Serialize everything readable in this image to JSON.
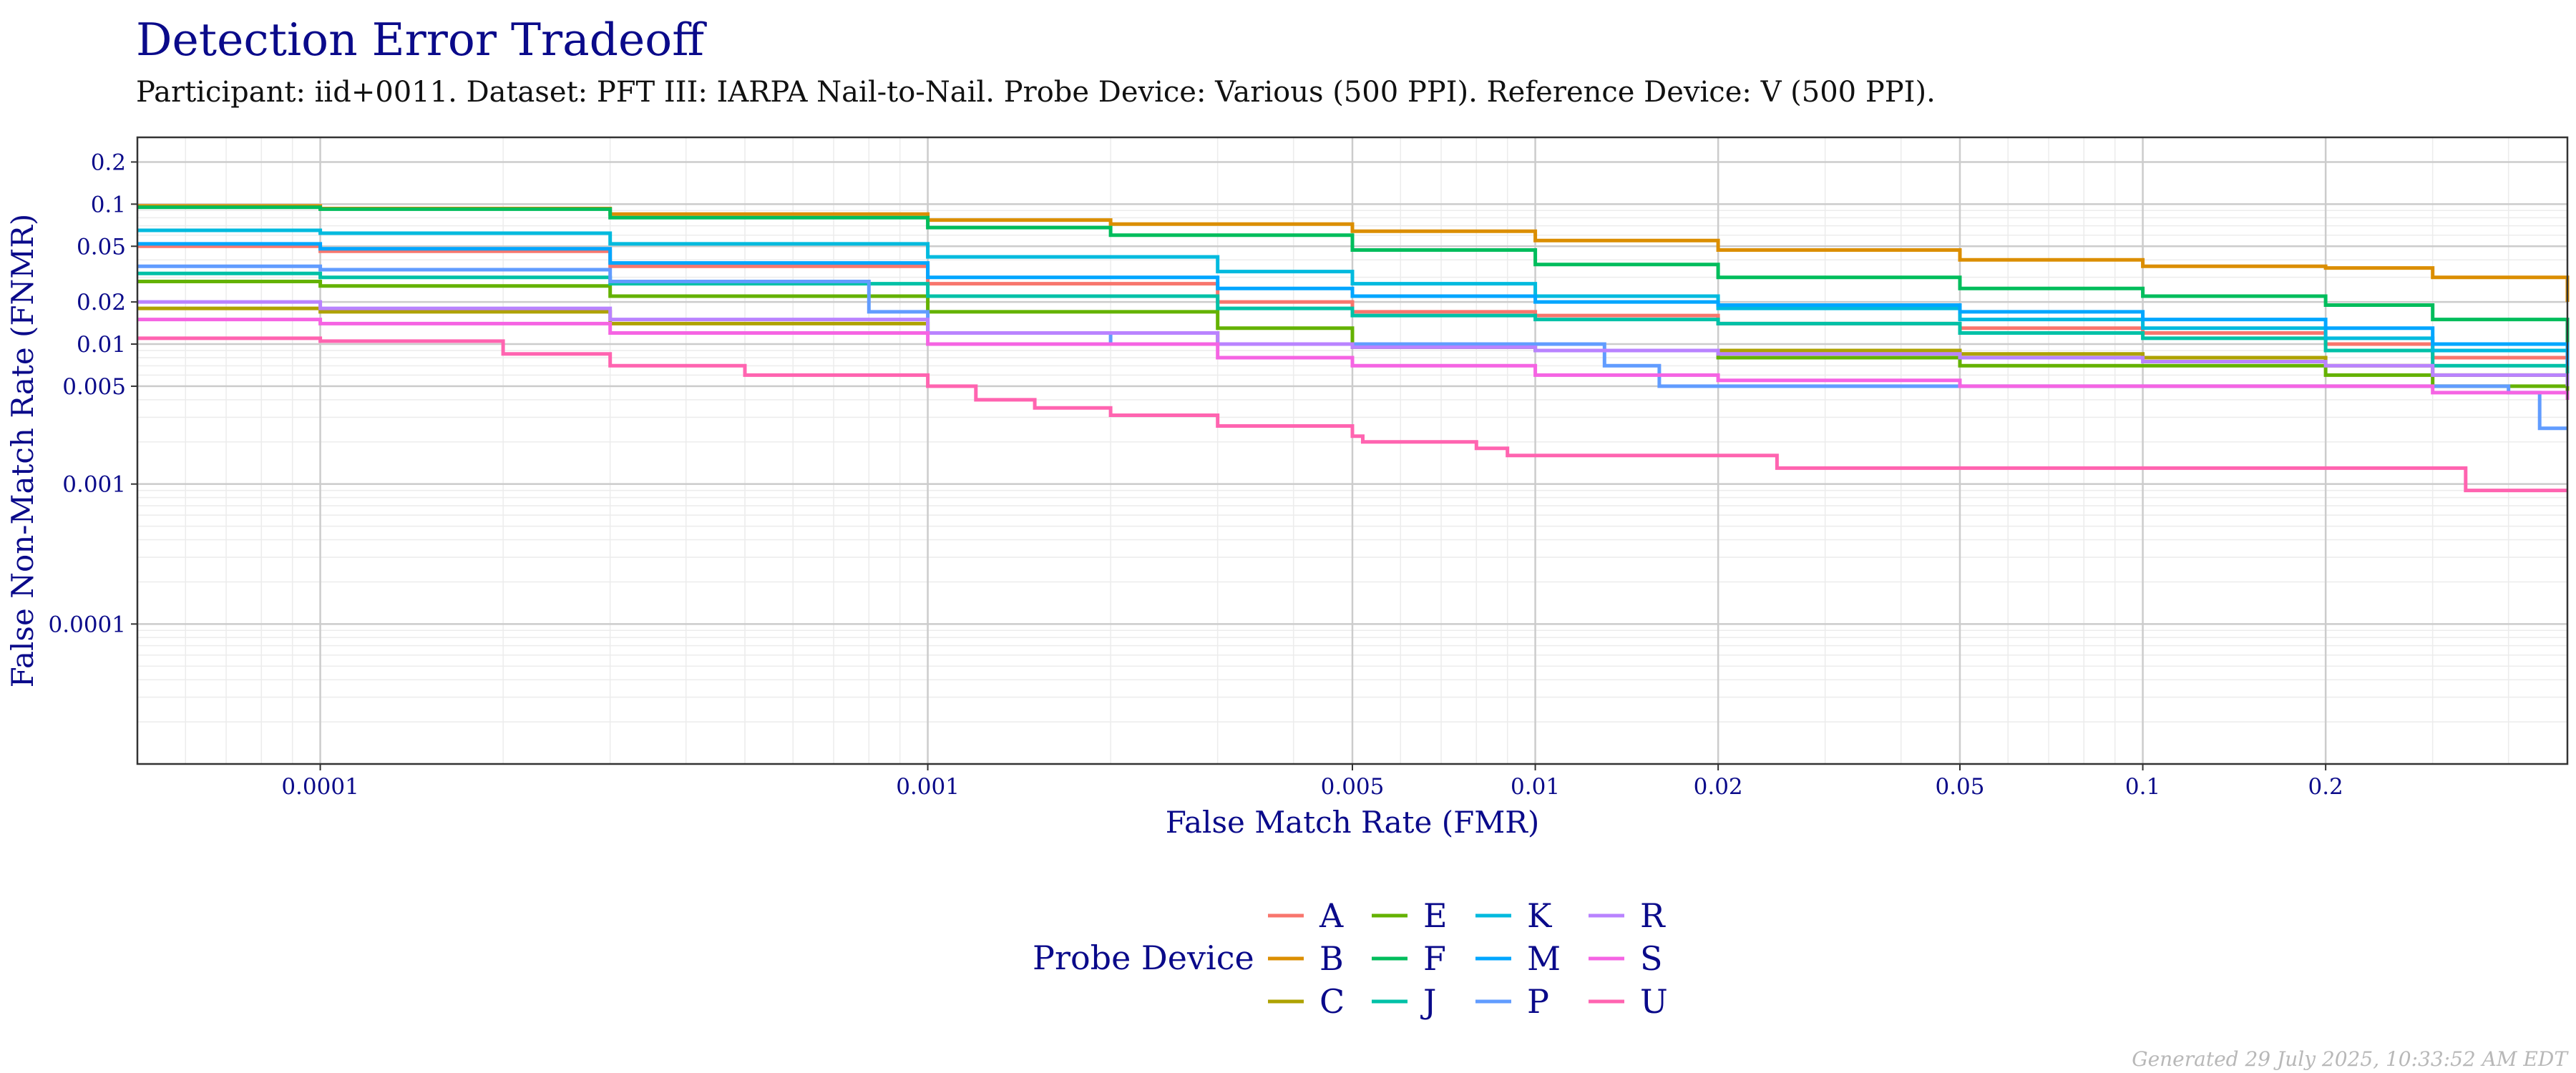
{
  "footer": "Generated 29 July 2025, 10:33:52 AM EDT",
  "chart_data": {
    "type": "line",
    "title": "Detection Error Tradeoff",
    "subtitle": "Participant: iid+0011. Dataset: PFT III: IARPA Nail-to-Nail. Probe Device: Various (500 PPI). Reference Device: V (500 PPI).",
    "xlabel": "False Match Rate (FMR)",
    "ylabel": "False Non-Match Rate (FNMR)",
    "x_scale": "log",
    "y_scale": "log",
    "xlim": [
      5e-05,
      0.5
    ],
    "ylim": [
      1e-05,
      0.3
    ],
    "x_ticks": [
      {
        "value": 0.0001,
        "label": "0.0001"
      },
      {
        "value": 0.001,
        "label": "0.001"
      },
      {
        "value": 0.005,
        "label": "0.005"
      },
      {
        "value": 0.01,
        "label": "0.01"
      },
      {
        "value": 0.02,
        "label": "0.02"
      },
      {
        "value": 0.05,
        "label": "0.05"
      },
      {
        "value": 0.1,
        "label": "0.1"
      },
      {
        "value": 0.2,
        "label": "0.2"
      }
    ],
    "y_ticks": [
      {
        "value": 0.0001,
        "label": "0.0001"
      },
      {
        "value": 0.001,
        "label": "0.001"
      },
      {
        "value": 0.005,
        "label": "0.005"
      },
      {
        "value": 0.01,
        "label": "0.01"
      },
      {
        "value": 0.02,
        "label": "0.02"
      },
      {
        "value": 0.05,
        "label": "0.05"
      },
      {
        "value": 0.1,
        "label": "0.1"
      },
      {
        "value": 0.2,
        "label": "0.2"
      }
    ],
    "grid": true,
    "legend": {
      "title": "Probe Device",
      "position": "bottom"
    },
    "series": [
      {
        "name": "A",
        "color": "#F8766D",
        "points": [
          [
            5e-05,
            0.05
          ],
          [
            0.0001,
            0.046
          ],
          [
            0.0003,
            0.036
          ],
          [
            0.001,
            0.027
          ],
          [
            0.003,
            0.02
          ],
          [
            0.005,
            0.017
          ],
          [
            0.01,
            0.016
          ],
          [
            0.02,
            0.014
          ],
          [
            0.05,
            0.013
          ],
          [
            0.1,
            0.012
          ],
          [
            0.2,
            0.01
          ],
          [
            0.3,
            0.008
          ],
          [
            0.5,
            0.006
          ]
        ]
      },
      {
        "name": "B",
        "color": "#DB8E00",
        "points": [
          [
            5e-05,
            0.097
          ],
          [
            0.0001,
            0.093
          ],
          [
            0.0003,
            0.085
          ],
          [
            0.001,
            0.077
          ],
          [
            0.002,
            0.072
          ],
          [
            0.005,
            0.064
          ],
          [
            0.01,
            0.055
          ],
          [
            0.02,
            0.047
          ],
          [
            0.05,
            0.04
          ],
          [
            0.1,
            0.036
          ],
          [
            0.2,
            0.035
          ],
          [
            0.3,
            0.03
          ],
          [
            0.5,
            0.02
          ]
        ]
      },
      {
        "name": "C",
        "color": "#AEA200",
        "points": [
          [
            5e-05,
            0.018
          ],
          [
            0.0001,
            0.017
          ],
          [
            0.0003,
            0.014
          ],
          [
            0.001,
            0.012
          ],
          [
            0.003,
            0.01
          ],
          [
            0.005,
            0.0095
          ],
          [
            0.01,
            0.009
          ],
          [
            0.02,
            0.009
          ],
          [
            0.05,
            0.0085
          ],
          [
            0.1,
            0.008
          ],
          [
            0.2,
            0.007
          ],
          [
            0.3,
            0.006
          ],
          [
            0.5,
            0.005
          ]
        ]
      },
      {
        "name": "E",
        "color": "#64B200",
        "points": [
          [
            5e-05,
            0.028
          ],
          [
            0.0001,
            0.026
          ],
          [
            0.0003,
            0.022
          ],
          [
            0.001,
            0.017
          ],
          [
            0.003,
            0.013
          ],
          [
            0.005,
            0.01
          ],
          [
            0.01,
            0.009
          ],
          [
            0.02,
            0.008
          ],
          [
            0.05,
            0.007
          ],
          [
            0.1,
            0.007
          ],
          [
            0.2,
            0.006
          ],
          [
            0.3,
            0.005
          ],
          [
            0.5,
            0.004
          ]
        ]
      },
      {
        "name": "F",
        "color": "#00BD5C",
        "points": [
          [
            5e-05,
            0.095
          ],
          [
            0.0001,
            0.092
          ],
          [
            0.0003,
            0.08
          ],
          [
            0.001,
            0.068
          ],
          [
            0.002,
            0.06
          ],
          [
            0.005,
            0.047
          ],
          [
            0.01,
            0.037
          ],
          [
            0.02,
            0.03
          ],
          [
            0.05,
            0.025
          ],
          [
            0.1,
            0.022
          ],
          [
            0.2,
            0.019
          ],
          [
            0.3,
            0.015
          ],
          [
            0.5,
            0.009
          ]
        ]
      },
      {
        "name": "J",
        "color": "#00C1A7",
        "points": [
          [
            5e-05,
            0.032
          ],
          [
            0.0001,
            0.03
          ],
          [
            0.0003,
            0.027
          ],
          [
            0.001,
            0.022
          ],
          [
            0.003,
            0.018
          ],
          [
            0.005,
            0.016
          ],
          [
            0.01,
            0.015
          ],
          [
            0.02,
            0.014
          ],
          [
            0.05,
            0.012
          ],
          [
            0.1,
            0.011
          ],
          [
            0.2,
            0.009
          ],
          [
            0.3,
            0.007
          ],
          [
            0.5,
            0.006
          ]
        ]
      },
      {
        "name": "K",
        "color": "#00BADE",
        "points": [
          [
            5e-05,
            0.065
          ],
          [
            0.0001,
            0.062
          ],
          [
            0.0003,
            0.052
          ],
          [
            0.001,
            0.042
          ],
          [
            0.003,
            0.033
          ],
          [
            0.005,
            0.027
          ],
          [
            0.01,
            0.022
          ],
          [
            0.02,
            0.018
          ],
          [
            0.05,
            0.015
          ],
          [
            0.1,
            0.013
          ],
          [
            0.2,
            0.011
          ],
          [
            0.3,
            0.009
          ],
          [
            0.5,
            0.007
          ]
        ]
      },
      {
        "name": "M",
        "color": "#00A6FF",
        "points": [
          [
            5e-05,
            0.052
          ],
          [
            0.0001,
            0.048
          ],
          [
            0.0003,
            0.038
          ],
          [
            0.001,
            0.03
          ],
          [
            0.003,
            0.025
          ],
          [
            0.005,
            0.022
          ],
          [
            0.01,
            0.02
          ],
          [
            0.02,
            0.019
          ],
          [
            0.05,
            0.017
          ],
          [
            0.1,
            0.015
          ],
          [
            0.2,
            0.013
          ],
          [
            0.3,
            0.01
          ],
          [
            0.5,
            0.007
          ]
        ]
      },
      {
        "name": "P",
        "color": "#619CFF",
        "points": [
          [
            5e-05,
            0.036
          ],
          [
            0.0001,
            0.034
          ],
          [
            0.0003,
            0.028
          ],
          [
            0.0008,
            0.017
          ],
          [
            0.001,
            0.012
          ],
          [
            0.002,
            0.01
          ],
          [
            0.005,
            0.01
          ],
          [
            0.01,
            0.01
          ],
          [
            0.013,
            0.007
          ],
          [
            0.016,
            0.005
          ],
          [
            0.05,
            0.005
          ],
          [
            0.1,
            0.005
          ],
          [
            0.2,
            0.005
          ],
          [
            0.4,
            0.0045
          ],
          [
            0.45,
            0.0025
          ],
          [
            0.5,
            0.0025
          ]
        ]
      },
      {
        "name": "R",
        "color": "#B983FF",
        "points": [
          [
            5e-05,
            0.02
          ],
          [
            0.0001,
            0.018
          ],
          [
            0.0003,
            0.015
          ],
          [
            0.001,
            0.012
          ],
          [
            0.003,
            0.01
          ],
          [
            0.005,
            0.0095
          ],
          [
            0.01,
            0.009
          ],
          [
            0.02,
            0.0085
          ],
          [
            0.05,
            0.008
          ],
          [
            0.1,
            0.0075
          ],
          [
            0.2,
            0.007
          ],
          [
            0.3,
            0.006
          ],
          [
            0.5,
            0.005
          ]
        ]
      },
      {
        "name": "S",
        "color": "#F564E3",
        "points": [
          [
            5e-05,
            0.015
          ],
          [
            0.0001,
            0.014
          ],
          [
            0.0003,
            0.012
          ],
          [
            0.001,
            0.01
          ],
          [
            0.003,
            0.008
          ],
          [
            0.005,
            0.007
          ],
          [
            0.01,
            0.006
          ],
          [
            0.02,
            0.0055
          ],
          [
            0.05,
            0.005
          ],
          [
            0.1,
            0.005
          ],
          [
            0.2,
            0.005
          ],
          [
            0.3,
            0.0045
          ],
          [
            0.5,
            0.004
          ]
        ]
      },
      {
        "name": "U",
        "color": "#FF64B0",
        "points": [
          [
            5e-05,
            0.011
          ],
          [
            0.0001,
            0.0105
          ],
          [
            0.0002,
            0.0085
          ],
          [
            0.0003,
            0.007
          ],
          [
            0.0005,
            0.006
          ],
          [
            0.001,
            0.005
          ],
          [
            0.0012,
            0.004
          ],
          [
            0.0015,
            0.0035
          ],
          [
            0.002,
            0.0031
          ],
          [
            0.003,
            0.0026
          ],
          [
            0.005,
            0.0022
          ],
          [
            0.0052,
            0.002
          ],
          [
            0.008,
            0.0018
          ],
          [
            0.009,
            0.0016
          ],
          [
            0.024,
            0.0016
          ],
          [
            0.025,
            0.0013
          ],
          [
            0.3,
            0.0013
          ],
          [
            0.34,
            0.0009
          ],
          [
            0.5,
            0.0009
          ]
        ]
      }
    ]
  }
}
